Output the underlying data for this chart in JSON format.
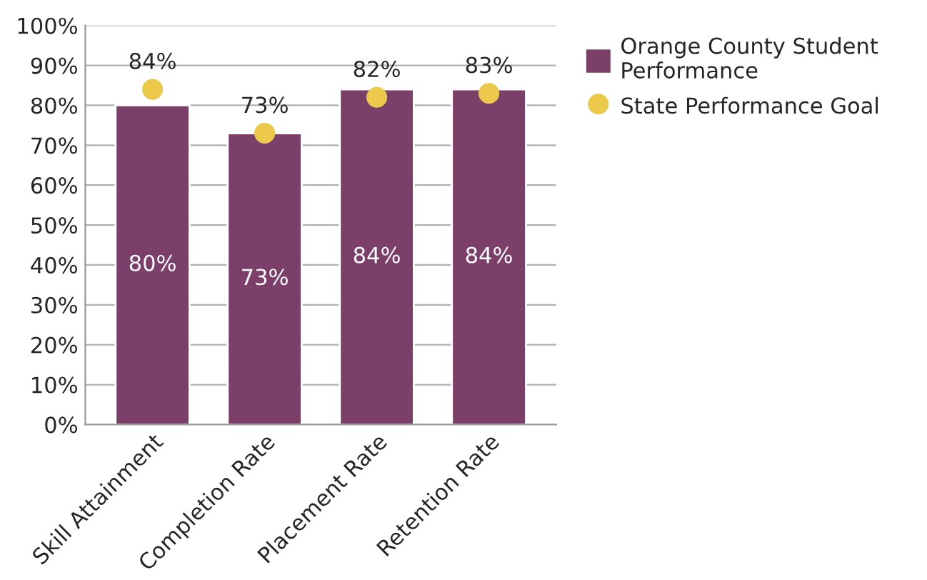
{
  "chart_data": {
    "type": "bar",
    "categories": [
      "Skill Attainment",
      "Completion Rate",
      "Placement Rate",
      "Retention Rate"
    ],
    "series": [
      {
        "name": "Orange County Student Performance",
        "type": "bar",
        "color": "#7b3f6a",
        "values": [
          80,
          73,
          84,
          84
        ],
        "value_labels": [
          "80%",
          "73%",
          "84%",
          "84%"
        ]
      },
      {
        "name": "State Performance Goal",
        "type": "scatter",
        "color": "#ecc94b",
        "values": [
          84,
          73,
          82,
          83
        ],
        "value_labels": [
          "84%",
          "73%",
          "82%",
          "83%"
        ]
      }
    ],
    "ylim": [
      0,
      100
    ],
    "yticks": [
      {
        "value": 0,
        "label": "0%"
      },
      {
        "value": 10,
        "label": "10%"
      },
      {
        "value": 20,
        "label": "20%"
      },
      {
        "value": 30,
        "label": "30%"
      },
      {
        "value": 40,
        "label": "40%"
      },
      {
        "value": 50,
        "label": "50%"
      },
      {
        "value": 60,
        "label": "60%"
      },
      {
        "value": 70,
        "label": "70%"
      },
      {
        "value": 80,
        "label": "80%"
      },
      {
        "value": 90,
        "label": "90%"
      },
      {
        "value": 100,
        "label": "100%"
      }
    ],
    "grid": "y",
    "legend": "top right",
    "marker": "circle"
  }
}
